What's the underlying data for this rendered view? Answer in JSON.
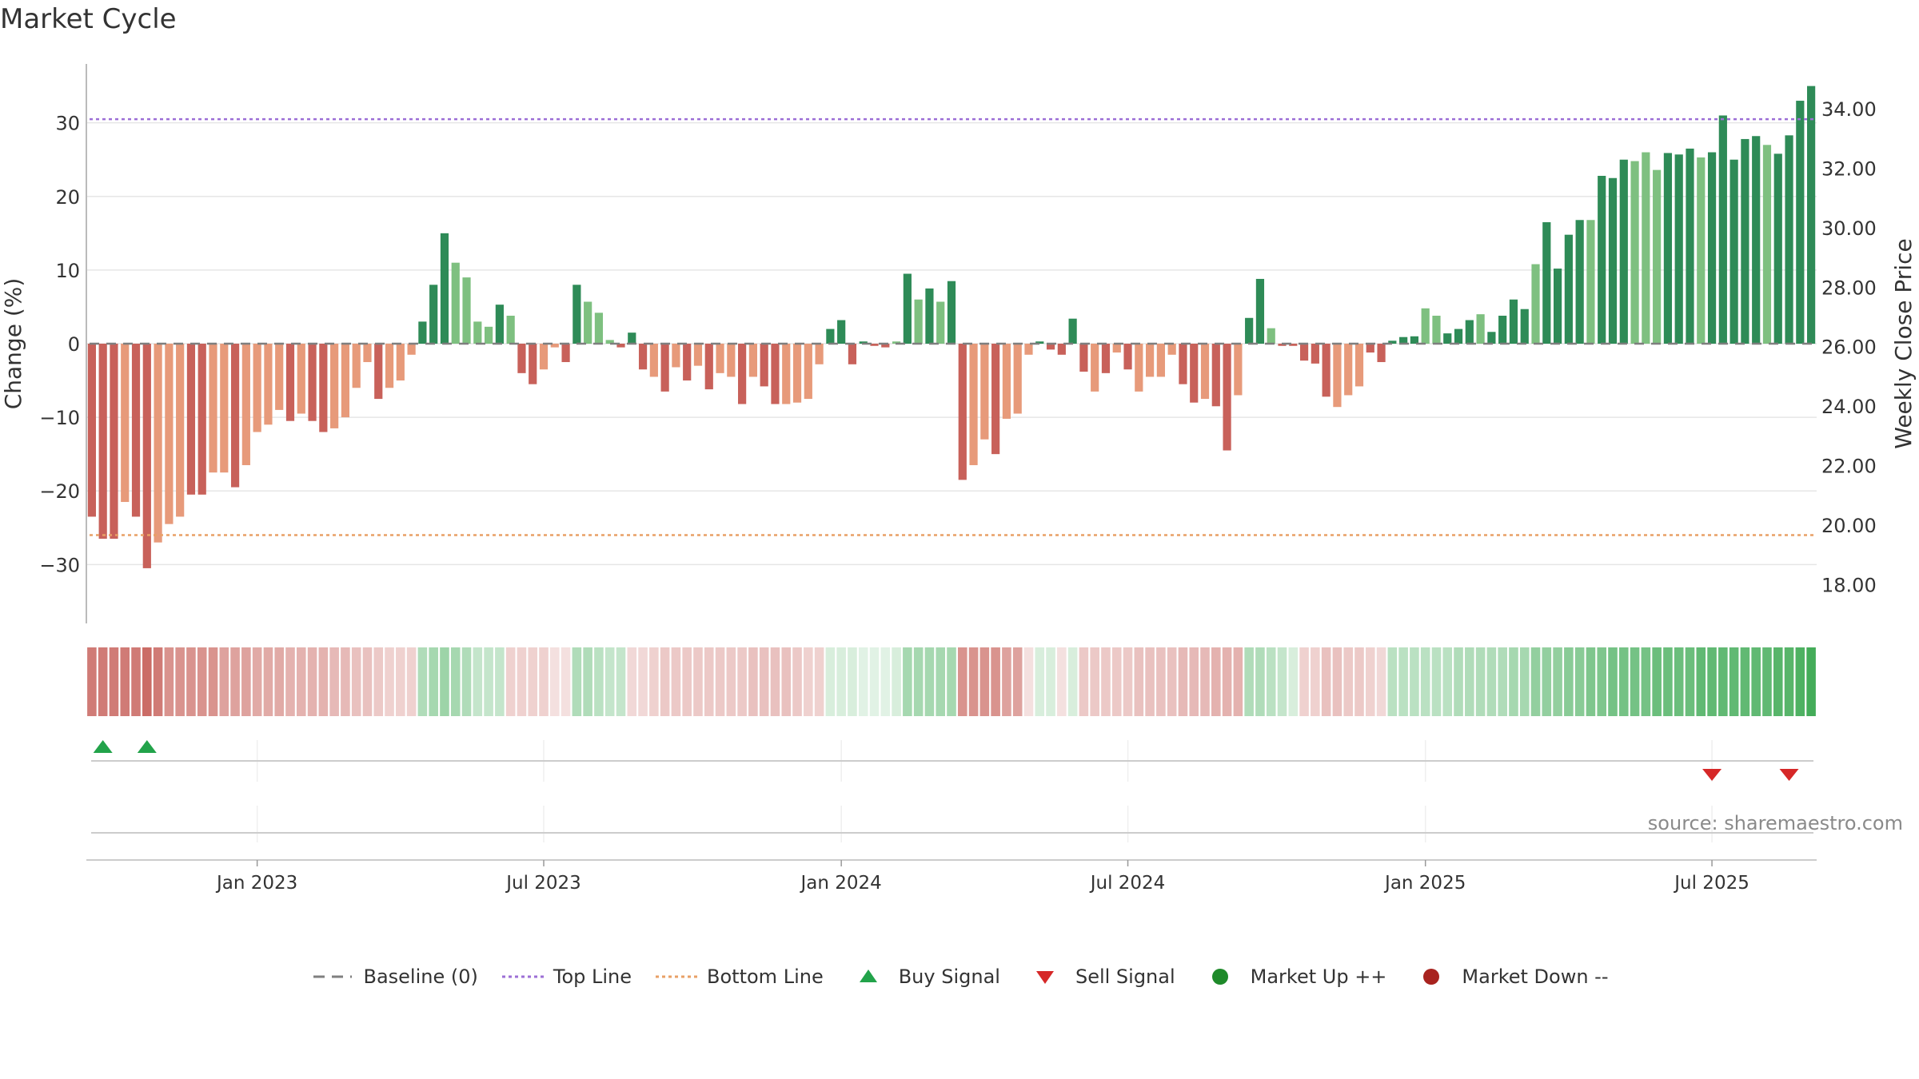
{
  "title": "Market Cycle",
  "source": "source: sharemaestro.com",
  "colors": {
    "up_strong": "#2e8b57",
    "up_light": "#7ec080",
    "down_strong": "#c8615a",
    "down_light": "#e79a7a",
    "top_line": "#9c6fd6",
    "bottom_line": "#e8a066",
    "buy": "#22a34a",
    "sell": "#d62828",
    "market_up": "#1e8a2a",
    "market_down": "#a8231f",
    "baseline": "#7f7f7f"
  },
  "chart_data": {
    "type": "bar",
    "ylabel": "Change (%)",
    "y2label": "Weekly Close Price",
    "ylim": [
      -38,
      38
    ],
    "y2lim": [
      16.7,
      35.5
    ],
    "yticks": [
      {
        "value": 30,
        "label": "30"
      },
      {
        "value": 20,
        "label": "20"
      },
      {
        "value": 10,
        "label": "10"
      },
      {
        "value": 0,
        "label": "0"
      },
      {
        "value": -10,
        "label": "−10"
      },
      {
        "value": -20,
        "label": "−20"
      },
      {
        "value": -30,
        "label": "−30"
      }
    ],
    "y2ticks": [
      {
        "value": 34,
        "label": "34.00"
      },
      {
        "value": 32,
        "label": "32.00"
      },
      {
        "value": 30,
        "label": "30.00"
      },
      {
        "value": 28,
        "label": "28.00"
      },
      {
        "value": 26,
        "label": "26.00"
      },
      {
        "value": 24,
        "label": "24.00"
      },
      {
        "value": 22,
        "label": "22.00"
      },
      {
        "value": 20,
        "label": "20.00"
      },
      {
        "value": 18,
        "label": "18.00"
      }
    ],
    "xticks": [
      {
        "index": 15,
        "label": "Jan 2023"
      },
      {
        "index": 41,
        "label": "Jul 2023"
      },
      {
        "index": 68,
        "label": "Jan 2024"
      },
      {
        "index": 94,
        "label": "Jul 2024"
      },
      {
        "index": 121,
        "label": "Jan 2025"
      },
      {
        "index": 147,
        "label": "Jul 2025"
      }
    ],
    "top_line": 30.5,
    "bottom_line": -26,
    "changes": [
      -23.5,
      -26.5,
      -26.5,
      -21.5,
      -23.5,
      -30.5,
      -27,
      -24.5,
      -23.5,
      -20.5,
      -20.5,
      -17.5,
      -17.5,
      -19.5,
      -16.5,
      -12,
      -11,
      -9,
      -10.5,
      -9.5,
      -10.5,
      -12,
      -11.5,
      -10,
      -6,
      -2.5,
      -7.5,
      -6,
      -5,
      -1.5,
      3,
      8,
      15,
      11,
      9,
      3,
      2.3,
      5.3,
      3.8,
      -4,
      -5.5,
      -3.5,
      -0.5,
      -2.5,
      8,
      5.7,
      4.2,
      0.5,
      -0.5,
      1.5,
      -3.5,
      -4.5,
      -6.5,
      -3.2,
      -5,
      -3,
      -6.2,
      -4,
      -4.5,
      -8.2,
      -4.5,
      -5.8,
      -8.2,
      -8.2,
      -8,
      -7.5,
      -2.8,
      2,
      3.2,
      -2.8,
      0.3,
      -0.3,
      -0.5,
      0.3,
      9.5,
      6,
      7.5,
      5.7,
      8.5,
      -18.5,
      -16.5,
      -13,
      -15,
      -10.2,
      -9.5,
      -1.5,
      0.3,
      -0.8,
      -1.5,
      3.4,
      -3.8,
      -6.5,
      -4,
      -1.2,
      -3.5,
      -6.5,
      -4.5,
      -4.5,
      -1.5,
      -5.5,
      -8,
      -7.5,
      -8.5,
      -14.5,
      -7,
      3.5,
      8.8,
      2.1,
      -0.3,
      -0.3,
      -2.3,
      -2.7,
      -7.2,
      -8.6,
      -7,
      -5.8,
      -1.2,
      -2.5,
      0.4,
      0.9,
      1,
      4.8,
      3.8,
      1.4,
      2,
      3.2,
      4,
      1.6,
      3.8,
      6,
      4.7,
      10.8,
      16.5,
      10.2,
      14.8,
      16.8,
      16.8,
      22.8,
      22.5,
      25,
      24.8,
      26,
      23.6,
      25.9,
      25.7,
      26.5,
      25.3,
      26,
      31,
      25,
      27.8,
      28.2,
      27,
      25.8,
      28.3,
      33,
      35
    ],
    "strength": [
      1,
      1,
      1,
      0,
      1,
      1,
      0,
      0,
      0,
      1,
      1,
      0,
      0,
      1,
      0,
      0,
      0,
      0,
      1,
      0,
      1,
      1,
      0,
      0,
      0,
      0,
      1,
      0,
      0,
      0,
      1,
      1,
      1,
      0,
      0,
      0,
      0,
      1,
      0,
      1,
      1,
      0,
      0,
      1,
      1,
      0,
      0,
      0,
      1,
      1,
      1,
      0,
      1,
      0,
      1,
      0,
      1,
      0,
      0,
      1,
      0,
      1,
      1,
      0,
      0,
      0,
      0,
      1,
      1,
      1,
      1,
      1,
      1,
      0,
      1,
      0,
      1,
      0,
      1,
      1,
      0,
      0,
      1,
      0,
      0,
      0,
      1,
      1,
      1,
      1,
      1,
      0,
      1,
      0,
      1,
      0,
      0,
      0,
      0,
      1,
      1,
      0,
      1,
      1,
      0,
      1,
      1,
      0,
      1,
      1,
      1,
      1,
      1,
      0,
      0,
      0,
      1,
      1,
      1,
      1,
      1,
      0,
      0,
      1,
      1,
      1,
      0,
      1,
      1,
      1,
      1,
      0,
      1,
      1,
      1,
      1,
      0,
      1,
      1,
      1,
      0,
      0,
      0,
      1,
      1,
      1,
      0,
      1,
      1,
      1,
      1,
      1,
      0,
      1,
      1,
      1,
      1,
      1
    ],
    "heat": [
      0.85,
      0.85,
      0.85,
      0.85,
      0.85,
      0.95,
      0.85,
      0.7,
      0.7,
      0.7,
      0.7,
      0.7,
      0.6,
      0.6,
      0.6,
      0.55,
      0.55,
      0.55,
      0.5,
      0.5,
      0.5,
      0.5,
      0.45,
      0.45,
      0.4,
      0.4,
      0.35,
      0.3,
      0.3,
      0.3,
      -0.4,
      -0.45,
      -0.5,
      -0.45,
      -0.4,
      -0.3,
      -0.3,
      -0.3,
      0.3,
      0.3,
      0.3,
      0.3,
      0.2,
      0.2,
      -0.4,
      -0.4,
      -0.35,
      -0.3,
      -0.3,
      0.25,
      0.25,
      0.3,
      0.35,
      0.35,
      0.35,
      0.35,
      0.35,
      0.35,
      0.35,
      0.35,
      0.4,
      0.4,
      0.4,
      0.4,
      0.35,
      0.3,
      0.3,
      -0.2,
      -0.2,
      -0.2,
      -0.15,
      -0.15,
      -0.15,
      -0.2,
      -0.45,
      -0.45,
      -0.45,
      -0.45,
      -0.45,
      0.7,
      0.7,
      0.7,
      0.7,
      0.6,
      0.6,
      0.2,
      -0.2,
      -0.2,
      0.2,
      -0.2,
      0.35,
      0.35,
      0.35,
      0.35,
      0.35,
      0.4,
      0.4,
      0.4,
      0.4,
      0.45,
      0.45,
      0.45,
      0.5,
      0.5,
      0.5,
      -0.4,
      -0.4,
      -0.35,
      -0.3,
      -0.2,
      0.3,
      0.3,
      0.4,
      0.4,
      0.35,
      0.35,
      0.3,
      0.25,
      -0.35,
      -0.35,
      -0.35,
      -0.35,
      -0.35,
      -0.35,
      -0.4,
      -0.4,
      -0.4,
      -0.4,
      -0.4,
      -0.45,
      -0.45,
      -0.55,
      -0.55,
      -0.55,
      -0.6,
      -0.6,
      -0.65,
      -0.65,
      -0.7,
      -0.7,
      -0.7,
      -0.7,
      -0.75,
      -0.75,
      -0.75,
      -0.75,
      -0.8,
      -0.8,
      -0.8,
      -0.8,
      -0.8,
      -0.8,
      -0.8,
      -0.85,
      -0.85,
      -0.9,
      -0.95
    ],
    "buy_signals": [
      1,
      5
    ],
    "sell_signals": [
      147,
      154
    ],
    "market_up_signals": [],
    "market_down_signals": [],
    "legend": [
      "Baseline (0)",
      "Top Line",
      "Bottom Line",
      "Buy Signal",
      "Sell Signal",
      "Market Up ++",
      "Market Down --"
    ]
  }
}
